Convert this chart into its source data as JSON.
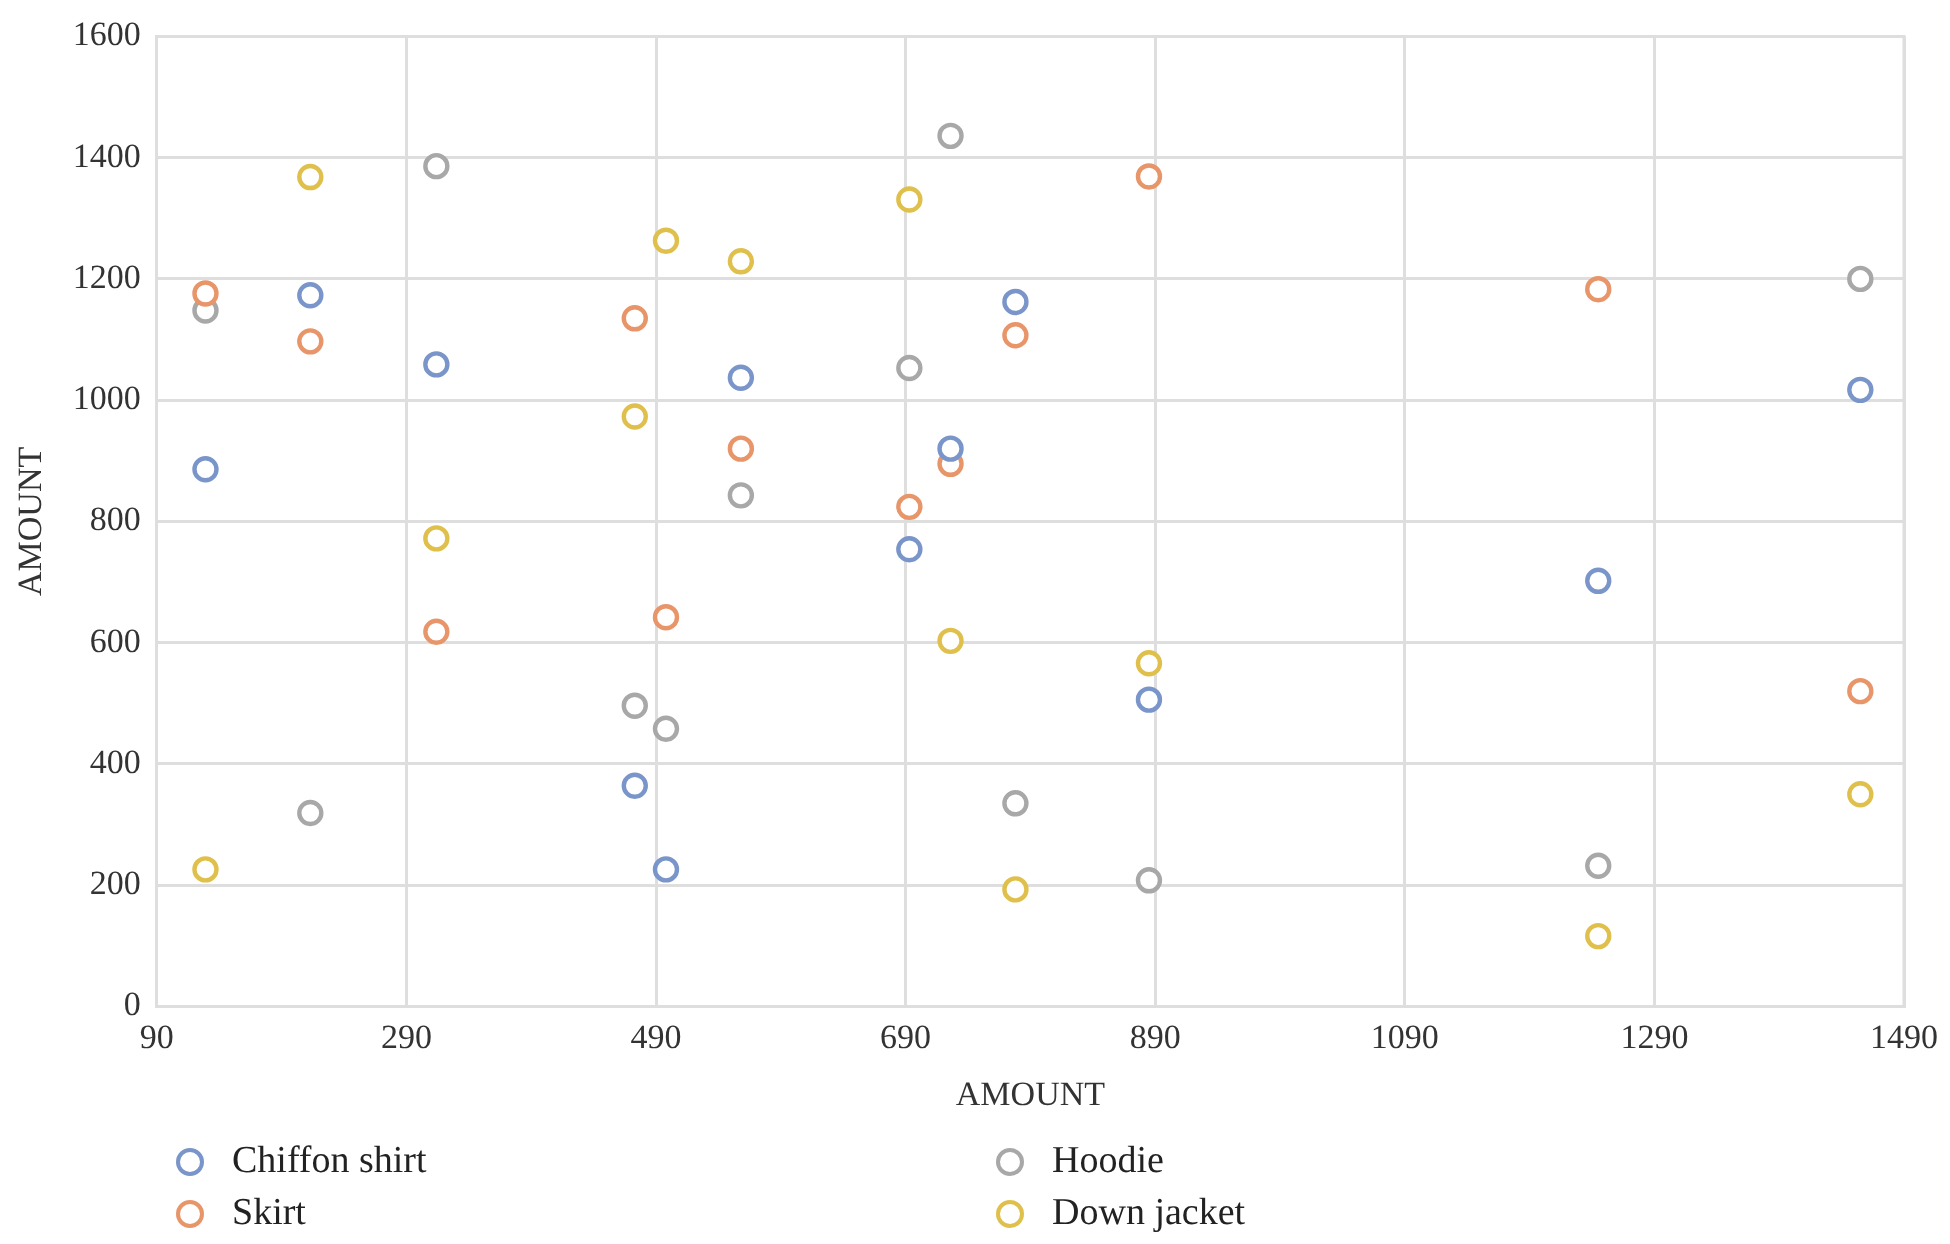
{
  "chart_data": {
    "type": "scatter",
    "xlabel": "AMOUNT",
    "ylabel": "AMOUNT",
    "x": [
      129,
      213,
      314,
      473,
      498,
      558,
      693,
      726,
      778,
      885,
      1245,
      1455
    ],
    "series": [
      {
        "name": "Chiffon shirt",
        "color": "#7a95c9",
        "values": [
          886,
          1173,
          1059,
          364,
          226,
          1037,
          754,
          920,
          1162,
          506,
          702,
          1017
        ]
      },
      {
        "name": "Skirt",
        "color": "#e8956a",
        "values": [
          1176,
          1097,
          618,
          1135,
          642,
          920,
          824,
          895,
          1107,
          1369,
          1183,
          520
        ]
      },
      {
        "name": "Hoodie",
        "color": "#a8a8a8",
        "values": [
          1148,
          319,
          1386,
          496,
          458,
          843,
          1053,
          1436,
          335,
          208,
          232,
          1200
        ]
      },
      {
        "name": "Down jacket",
        "color": "#e0c04c",
        "values": [
          226,
          1368,
          772,
          973,
          1263,
          1229,
          1331,
          603,
          193,
          566,
          116,
          350
        ]
      }
    ],
    "xlim": [
      90,
      1490
    ],
    "xticks": [
      90,
      290,
      490,
      690,
      890,
      1090,
      1290,
      1490
    ],
    "ylim": [
      0,
      1600
    ],
    "yticks": [
      0,
      200,
      400,
      600,
      800,
      1000,
      1200,
      1400,
      1600
    ],
    "grid": true,
    "legend": "bottom",
    "marker": "circle"
  }
}
